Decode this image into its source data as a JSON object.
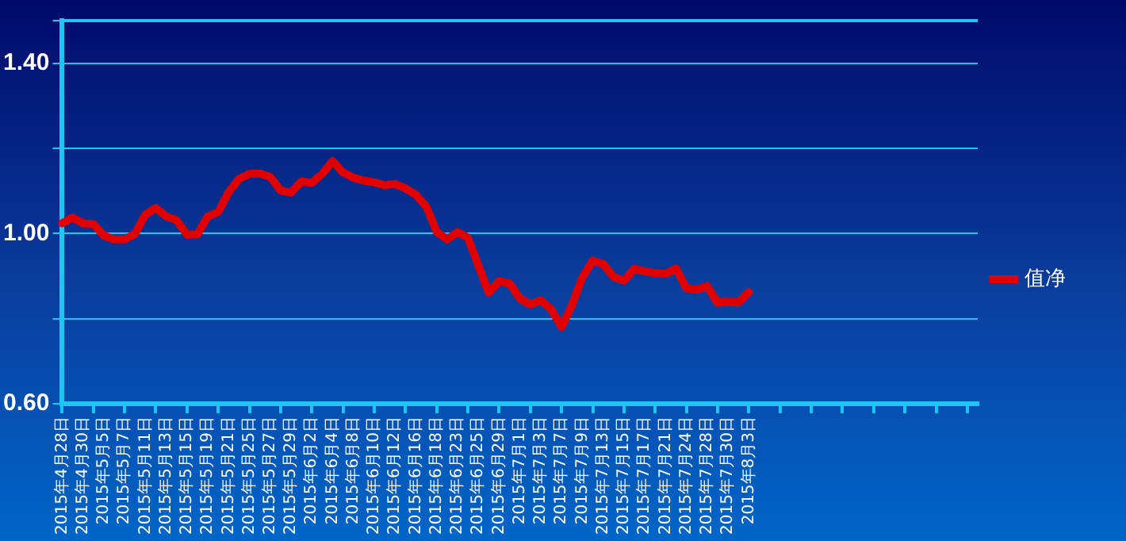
{
  "chart_data": {
    "type": "line",
    "categories": [
      "2015年4月28日",
      null,
      "2015年4月30日",
      null,
      "2015年5月5日",
      null,
      "2015年5月7日",
      null,
      "2015年5月11日",
      null,
      "2015年5月13日",
      null,
      "2015年5月15日",
      null,
      "2015年5月19日",
      null,
      "2015年5月21日",
      null,
      "2015年5月25日",
      null,
      "2015年5月27日",
      null,
      "2015年5月29日",
      null,
      "2015年6月2日",
      null,
      "2015年6月4日",
      null,
      "2015年6月8日",
      null,
      "2015年6月10日",
      null,
      "2015年6月12日",
      null,
      "2015年6月16日",
      null,
      "2015年6月18日",
      null,
      "2015年6月23日",
      null,
      "2015年6月25日",
      null,
      "2015年6月29日",
      null,
      "2015年7月1日",
      null,
      "2015年7月3日",
      null,
      "2015年7月7日",
      null,
      "2015年7月9日",
      null,
      "2015年7月13日",
      null,
      "2015年7月15日",
      null,
      "2015年7月17日",
      null,
      "2015年7月21日",
      null,
      "2015年7月24日",
      null,
      "2015年7月28日",
      null,
      "2015年7月30日",
      null,
      "2015年8月3日",
      null,
      null,
      null,
      null,
      null,
      null,
      null,
      null,
      null,
      null,
      null,
      null,
      null,
      null,
      null,
      null,
      null,
      null,
      null,
      null,
      null,
      null
    ],
    "series": [
      {
        "name": "值净",
        "color": "#e00000",
        "values": [
          1.024,
          1.037,
          1.024,
          1.022,
          0.995,
          0.986,
          0.986,
          0.999,
          1.044,
          1.06,
          1.04,
          1.031,
          0.997,
          0.998,
          1.04,
          1.05,
          1.097,
          1.128,
          1.14,
          1.141,
          1.133,
          1.101,
          1.096,
          1.122,
          1.119,
          1.14,
          1.17,
          1.143,
          1.131,
          1.124,
          1.12,
          1.113,
          1.116,
          1.106,
          1.091,
          1.063,
          1.004,
          0.986,
          1.003,
          0.99,
          0.925,
          0.861,
          0.888,
          0.883,
          0.847,
          0.833,
          0.843,
          0.822,
          0.78,
          0.832,
          0.897,
          0.936,
          0.928,
          0.898,
          0.889,
          0.917,
          0.911,
          0.907,
          0.905,
          0.918,
          0.871,
          0.868,
          0.876,
          0.837,
          0.84,
          0.838,
          0.862,
          null,
          null,
          null,
          null,
          null,
          null,
          null,
          null,
          null,
          null,
          null,
          null,
          null,
          null,
          null,
          null,
          null,
          null,
          null,
          null,
          null,
          null
        ]
      }
    ],
    "ylim": [
      0.6,
      1.5
    ],
    "yticks": [
      {
        "value": 0.6,
        "label": "0.60"
      },
      {
        "value": 0.8,
        "label": null
      },
      {
        "value": 1.0,
        "label": "1.00"
      },
      {
        "value": 1.2,
        "label": null
      },
      {
        "value": 1.4,
        "label": "1.40"
      },
      {
        "value": 1.5,
        "label": null
      }
    ],
    "grid": "y",
    "legend": "right",
    "marker": "none",
    "line_style": "solid"
  }
}
